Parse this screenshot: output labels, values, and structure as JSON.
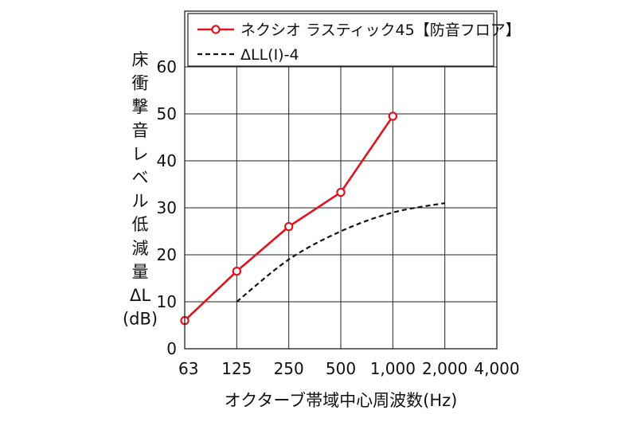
{
  "chart_data": {
    "type": "line",
    "xlabel": "オクターブ帯域中心周波数(Hz)",
    "ylabel_lines": [
      "床",
      "衝",
      "撃",
      "音",
      "レ",
      "ベ",
      "ル",
      "低",
      "減",
      "量",
      "ΔL",
      "(dB)"
    ],
    "categories": [
      "63",
      "125",
      "250",
      "500",
      "1,000",
      "2,000",
      "4,000"
    ],
    "ylim": [
      0,
      60
    ],
    "yticks": [
      "0",
      "10",
      "20",
      "30",
      "40",
      "50",
      "60"
    ],
    "grid": true,
    "legend_position": "top",
    "series": [
      {
        "name": "ネクシオ ラスティック45【防音フロア】",
        "style": "solid-red-circle-markers",
        "color": "#e0141e",
        "x": [
          "63",
          "125",
          "250",
          "500",
          "1,000"
        ],
        "values": [
          6,
          16.5,
          26,
          33.3,
          49.5
        ]
      },
      {
        "name": "ΔLL(Ⅰ)-4",
        "style": "dashed-black",
        "color": "#111111",
        "x": [
          "125",
          "250",
          "500",
          "1,000",
          "2,000"
        ],
        "values": [
          10,
          19,
          25,
          29,
          31
        ]
      }
    ]
  }
}
